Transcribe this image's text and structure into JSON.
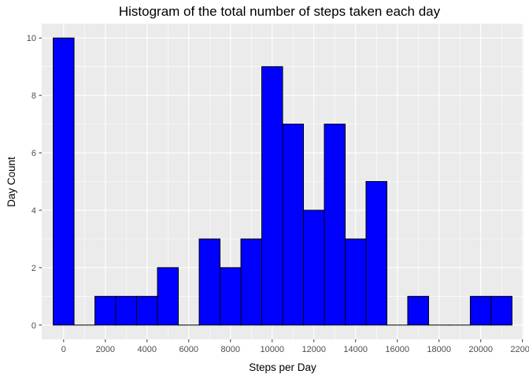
{
  "chart_data": {
    "type": "bar",
    "title": "Histogram of the total number of steps taken each day",
    "xlabel": "Steps per Day",
    "ylabel": "Day Count",
    "bin_width": 1000,
    "x": [
      0,
      1000,
      2000,
      3000,
      4000,
      5000,
      6000,
      7000,
      8000,
      9000,
      10000,
      11000,
      12000,
      13000,
      14000,
      15000,
      16000,
      17000,
      18000,
      19000,
      20000,
      21000
    ],
    "values": [
      10,
      0,
      1,
      1,
      1,
      2,
      0,
      3,
      2,
      3,
      9,
      7,
      4,
      7,
      3,
      5,
      0,
      1,
      0,
      0,
      1,
      1
    ],
    "xlim": [
      -1050,
      22050
    ],
    "ylim": [
      -0.5,
      10.5
    ],
    "x_ticks": [
      0,
      2000,
      4000,
      6000,
      8000,
      10000,
      12000,
      14000,
      16000,
      18000,
      20000,
      22000
    ],
    "x_tick_labels": [
      "0",
      "2000",
      "4000",
      "6000",
      "8000",
      "10000",
      "12000",
      "14000",
      "16000",
      "18000",
      "20000",
      "22000"
    ],
    "y_ticks": [
      0,
      2,
      4,
      6,
      8,
      10
    ],
    "y_tick_labels": [
      "0",
      "2",
      "4",
      "6",
      "8",
      "10"
    ],
    "grid": true,
    "colors": {
      "fill": "#0000FF",
      "outline": "#000000",
      "panel_background": "#EBEBEB",
      "grid_major": "#FFFFFF"
    }
  }
}
